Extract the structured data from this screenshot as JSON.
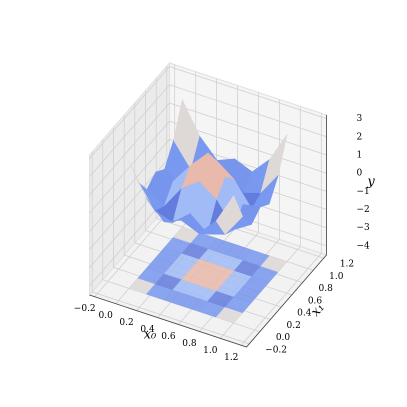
{
  "chart_data": {
    "type": "surface3d",
    "xlabel": "x₀",
    "x1label": "x₁",
    "ylabel": "y",
    "x": [
      0,
      0.1667,
      0.3333,
      0.5,
      0.6667,
      0.8333,
      1
    ],
    "x1": [
      0,
      0.1667,
      0.3333,
      0.5,
      0.6667,
      0.8333,
      1
    ],
    "z": [
      [
        2.5,
        0.8,
        -0.2,
        0.2,
        -0.2,
        0.8,
        2.5
      ],
      [
        0.8,
        -0.5,
        -0.8,
        0.0,
        -0.8,
        -0.5,
        0.8
      ],
      [
        -0.2,
        -0.8,
        0.5,
        1.2,
        0.5,
        -0.8,
        -0.2
      ],
      [
        0.2,
        0.0,
        1.2,
        2.2,
        1.2,
        0.0,
        0.2
      ],
      [
        -0.2,
        -0.8,
        0.5,
        1.2,
        0.5,
        -0.8,
        -0.2
      ],
      [
        0.8,
        -0.5,
        -0.8,
        0.0,
        -0.8,
        -0.5,
        0.8
      ],
      [
        2.5,
        0.8,
        -0.2,
        0.2,
        -0.2,
        0.8,
        2.5
      ]
    ],
    "colormap": "coolwarm",
    "xlim": [
      -0.25,
      1.25
    ],
    "x1lim": [
      -0.25,
      1.25
    ],
    "ylim": [
      -4.5,
      3.2
    ],
    "xticks": [
      {
        "value": -0.2,
        "label": "−0.2"
      },
      {
        "value": 0,
        "label": "0.0"
      },
      0.2,
      0.4,
      0.6,
      0.8,
      {
        "value": 1,
        "label": "1.0"
      },
      1.2
    ],
    "x1ticks": [
      {
        "value": -0.2,
        "label": "−0.2"
      },
      {
        "value": 0,
        "label": "0.0"
      },
      0.2,
      0.4,
      0.6,
      0.8,
      {
        "value": 1,
        "label": "1.0"
      },
      1.2
    ],
    "yticks": [
      {
        "value": -4,
        "label": "−4"
      },
      {
        "value": -3,
        "label": "−3"
      },
      {
        "value": -2,
        "label": "−2"
      },
      {
        "value": -1,
        "label": "−1"
      },
      0,
      1,
      2,
      3
    ],
    "grid": true
  }
}
